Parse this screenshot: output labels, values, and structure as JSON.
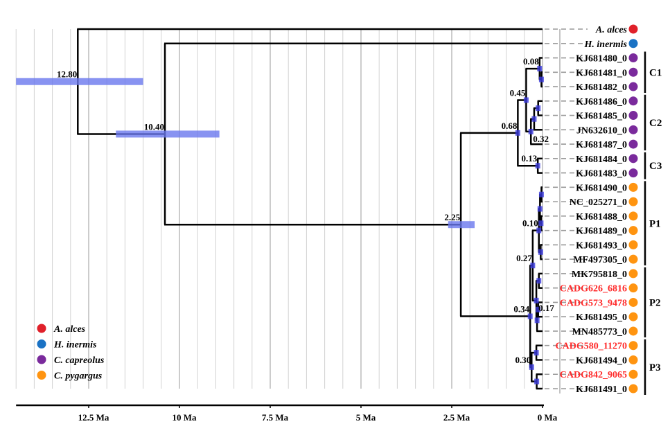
{
  "colors": {
    "A. alces": "#e0202a",
    "H. inermis": "#1a72c4",
    "C. capreolus": "#7a2a9c",
    "C. pygargus": "#ff9410",
    "highlight_label": "#ff2a2a",
    "hpd_bar": "#6a78ee"
  },
  "axis": {
    "ticks": [
      {
        "value": 12.5,
        "label": "12.5 Ma"
      },
      {
        "value": 10,
        "label": "10 Ma"
      },
      {
        "value": 7.5,
        "label": "7.5 Ma"
      },
      {
        "value": 5,
        "label": "5 Ma"
      },
      {
        "value": 2.5,
        "label": "2.5 Ma"
      },
      {
        "value": 0,
        "label": "0 Ma"
      }
    ],
    "range": [
      14.5,
      0
    ],
    "grid_step": 0.5
  },
  "legend": [
    {
      "label": "A. alces",
      "species": "A. alces"
    },
    {
      "label": "H. inermis",
      "species": "H. inermis"
    },
    {
      "label": "C. capreolus",
      "species": "C. capreolus"
    },
    {
      "label": "C. pygargus",
      "species": "C. pygargus"
    }
  ],
  "tips": [
    {
      "name": "A. alces",
      "species": "A. alces",
      "italic": true
    },
    {
      "name": "H. inermis",
      "species": "H. inermis",
      "italic": true
    },
    {
      "name": "KJ681480_0",
      "species": "C. capreolus"
    },
    {
      "name": "KJ681481_0",
      "species": "C. capreolus"
    },
    {
      "name": "KJ681482_0",
      "species": "C. capreolus"
    },
    {
      "name": "KJ681486_0",
      "species": "C. capreolus"
    },
    {
      "name": "KJ681485_0",
      "species": "C. capreolus"
    },
    {
      "name": "JN632610_0",
      "species": "C. capreolus"
    },
    {
      "name": "KJ681487_0",
      "species": "C. capreolus"
    },
    {
      "name": "KJ681484_0",
      "species": "C. capreolus"
    },
    {
      "name": "KJ681483_0",
      "species": "C. capreolus"
    },
    {
      "name": "KJ681490_0",
      "species": "C. pygargus"
    },
    {
      "name": "NC_025271_0",
      "species": "C. pygargus"
    },
    {
      "name": "KJ681488_0",
      "species": "C. pygargus"
    },
    {
      "name": "KJ681489_0",
      "species": "C. pygargus"
    },
    {
      "name": "KJ681493_0",
      "species": "C. pygargus"
    },
    {
      "name": "MF497305_0",
      "species": "C. pygargus"
    },
    {
      "name": "MK795818_0",
      "species": "C. pygargus"
    },
    {
      "name": "CADG626_6816",
      "species": "C. pygargus",
      "highlight": true
    },
    {
      "name": "CADG573_9478",
      "species": "C. pygargus",
      "highlight": true
    },
    {
      "name": "KJ681495_0",
      "species": "C. pygargus"
    },
    {
      "name": "MN485773_0",
      "species": "C. pygargus"
    },
    {
      "name": "CADG580_11270",
      "species": "C. pygargus",
      "highlight": true
    },
    {
      "name": "KJ681494_0",
      "species": "C. pygargus"
    },
    {
      "name": "CADG842_9065",
      "species": "C. pygargus",
      "highlight": true
    },
    {
      "name": "KJ681491_0",
      "species": "C. pygargus"
    }
  ],
  "tree": {
    "id": "n1280",
    "age": 12.8,
    "label": "12.80",
    "hpd": [
      14.5,
      11.0
    ],
    "children": [
      {
        "tip": 0
      },
      {
        "id": "n1040",
        "age": 10.4,
        "label": "10.40",
        "hpd": [
          11.75,
          8.9
        ],
        "children": [
          {
            "tip": 1
          },
          {
            "id": "n225",
            "age": 2.25,
            "label": "2.25",
            "hpd": [
              2.6,
              1.87
            ],
            "children": [
              {
                "id": "n068",
                "age": 0.68,
                "label": "0.68",
                "children": [
                  {
                    "id": "n045",
                    "age": 0.45,
                    "label": "0.45",
                    "children": [
                      {
                        "id": "n008",
                        "age": 0.08,
                        "label": "0.08",
                        "children": [
                          {
                            "tip": 2
                          },
                          {
                            "age": 0.03,
                            "children": [
                              {
                                "tip": 3
                              },
                              {
                                "tip": 4
                              }
                            ]
                          }
                        ]
                      },
                      {
                        "id": "n032",
                        "age": 0.32,
                        "label": "0.32",
                        "children": [
                          {
                            "age": 0.23,
                            "children": [
                              {
                                "age": 0.12,
                                "children": [
                                  {
                                    "tip": 5
                                  },
                                  {
                                    "tip": 6
                                  }
                                ]
                              },
                              {
                                "tip": 7
                              }
                            ]
                          },
                          {
                            "tip": 8
                          }
                        ]
                      }
                    ]
                  },
                  {
                    "id": "n013",
                    "age": 0.13,
                    "label": "0.13",
                    "children": [
                      {
                        "tip": 9
                      },
                      {
                        "tip": 10
                      }
                    ]
                  }
                ]
              },
              {
                "id": "n034",
                "age": 0.34,
                "label": "0.34",
                "children": [
                  {
                    "id": "n027",
                    "age": 0.27,
                    "label": "0.27",
                    "children": [
                      {
                        "id": "n010",
                        "age": 0.1,
                        "label": "0.10",
                        "children": [
                          {
                            "age": 0.07,
                            "children": [
                              {
                                "age": 0.03,
                                "children": [
                                  {
                                    "tip": 11
                                  },
                                  {
                                    "tip": 12
                                  }
                                ]
                              },
                              {
                                "age": 0.04,
                                "children": [
                                  {
                                    "tip": 13
                                  },
                                  {
                                    "tip": 14
                                  }
                                ]
                              }
                            ]
                          },
                          {
                            "age": 0.05,
                            "children": [
                              {
                                "tip": 15
                              },
                              {
                                "tip": 16
                              }
                            ]
                          }
                        ]
                      },
                      {
                        "id": "n017",
                        "age": 0.17,
                        "label": "0.17",
                        "children": [
                          {
                            "age": 0.1,
                            "children": [
                              {
                                "tip": 17
                              },
                              {
                                "tip": 18
                              }
                            ]
                          },
                          {
                            "age": 0.15,
                            "children": [
                              {
                                "age": 0.12,
                                "children": [
                                  {
                                    "tip": 19
                                  },
                                  {
                                    "tip": 20
                                  }
                                ]
                              },
                              {
                                "tip": 21
                              }
                            ]
                          }
                        ]
                      }
                    ]
                  },
                  {
                    "id": "n030",
                    "age": 0.3,
                    "label": "0.30",
                    "children": [
                      {
                        "age": 0.17,
                        "children": [
                          {
                            "tip": 22
                          },
                          {
                            "tip": 23
                          }
                        ]
                      },
                      {
                        "age": 0.16,
                        "children": [
                          {
                            "tip": 24
                          },
                          {
                            "tip": 25
                          }
                        ]
                      }
                    ]
                  }
                ]
              }
            ]
          }
        ]
      }
    ]
  },
  "clades": [
    {
      "label": "C1",
      "from": 2,
      "to": 4
    },
    {
      "label": "C2",
      "from": 5,
      "to": 8
    },
    {
      "label": "C3",
      "from": 9,
      "to": 10
    },
    {
      "label": "P1",
      "from": 11,
      "to": 16
    },
    {
      "label": "P2",
      "from": 17,
      "to": 21
    },
    {
      "label": "P3",
      "from": 22,
      "to": 25
    }
  ]
}
